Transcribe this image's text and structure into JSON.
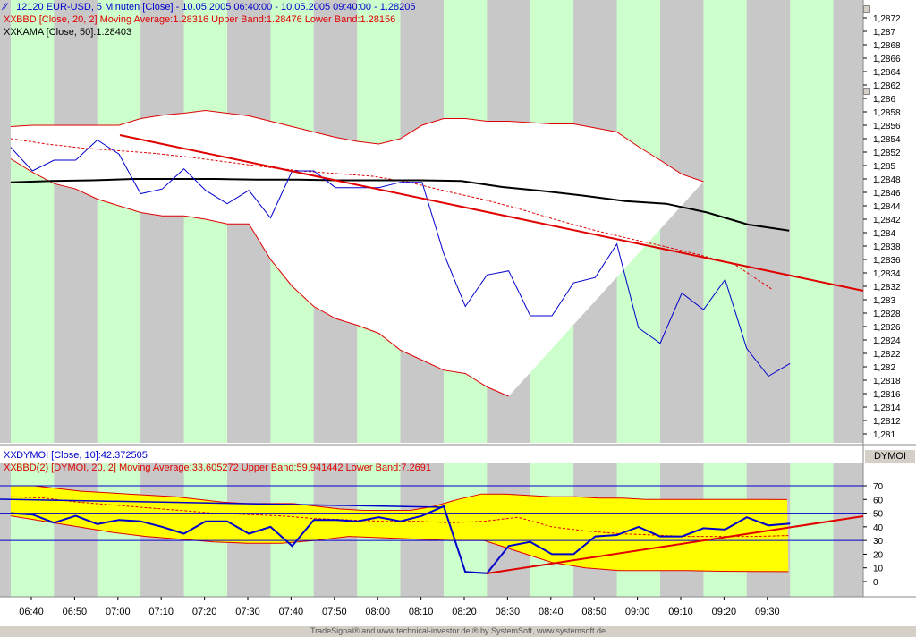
{
  "colors": {
    "stripe_gray": "#c8c8c8",
    "stripe_green": "#ccffcc",
    "price": "#0000cc",
    "band": "#e00000",
    "kama": "#000000",
    "trend": "#e00000",
    "band_fill_top": "#ffffff",
    "band_fill_bottom": "#ffff00"
  },
  "legends": {
    "price": "12120  EUR-USD, 5 Minuten [Close] - 10.05.2005 06:40:00 - 10.05.2005 09:40:00 - 1.28205",
    "bbd": "BBD [Close, 20, 2] Moving Average:1.28316 Upper Band:1.28476 Lower Band:1.28156",
    "kama": "KAMA [Close, 50]:1.28403",
    "dymoi": "DYMOI [Close, 10]:42.372505",
    "bbd2": "BBD(2) [DYMOI, 20, 2] Moving Average:33.605272 Upper Band:59.941442 Lower Band:7.2691"
  },
  "lower_panel_label": "DYMOI",
  "footer": "TradeSignal® and www.technical-investor.de ® by  SystemSoft, www.systemsoft.de",
  "x_labels": [
    "06:40",
    "06:50",
    "07:00",
    "07:10",
    "07:20",
    "07:30",
    "07:40",
    "07:50",
    "08:00",
    "08:10",
    "08:20",
    "08:30",
    "08:40",
    "08:50",
    "09:00",
    "09:10",
    "09:20",
    "09:30"
  ],
  "price_ticks": [
    "1,2872",
    "1,287",
    "1,2868",
    "1,2866",
    "1,2864",
    "1,2862",
    "1,286",
    "1,2858",
    "1,2856",
    "1,2854",
    "1,2852",
    "1,285",
    "1,2848",
    "1,2846",
    "1,2844",
    "1,2842",
    "1,284",
    "1,2838",
    "1,2836",
    "1,2834",
    "1,2832",
    "1,283",
    "1,2828",
    "1,2826",
    "1,2824",
    "1,2822",
    "1,282",
    "1,2818",
    "1,2816",
    "1,2814",
    "1,2812",
    "1,281"
  ],
  "dymoi_ticks": [
    "70",
    "60",
    "50",
    "40",
    "30",
    "20",
    "10",
    "0"
  ],
  "chart_data": [
    {
      "type": "line",
      "title": "12120  EUR-USD, 5 Minuten [Close]",
      "ylim": [
        1.2808,
        1.2874
      ],
      "series": [
        {
          "name": "EUR-USD Close",
          "values": [
            1.28527,
            1.28492,
            1.28508,
            1.28508,
            1.28538,
            1.28517,
            1.28458,
            1.28465,
            1.28495,
            1.28463,
            1.28443,
            1.28463,
            1.28422,
            1.28492,
            1.28492,
            1.28467,
            1.28467,
            1.28467,
            1.28475,
            1.28475,
            1.28369,
            1.2829,
            1.28337,
            1.28343,
            1.28276,
            1.28276,
            1.28325,
            1.28333,
            1.28383,
            1.28258,
            1.28235,
            1.2831,
            1.28285,
            1.2833,
            1.28227,
            1.28186,
            1.28205
          ]
        },
        {
          "name": "BBD Upper Band",
          "values": [
            1.28558,
            1.2856,
            1.2856,
            1.2856,
            1.2856,
            1.2856,
            1.2857,
            1.28575,
            1.28578,
            1.28582,
            1.28578,
            1.28574,
            1.28566,
            1.28558,
            1.2855,
            1.28542,
            1.28536,
            1.28532,
            1.2854,
            1.2856,
            1.2857,
            1.2857,
            1.28566,
            1.28566,
            1.28564,
            1.28562,
            1.28562,
            1.28556,
            1.2855,
            1.28528,
            1.28508,
            1.28487,
            1.28476
          ]
        },
        {
          "name": "BBD Moving Average",
          "values": [
            1.2854,
            1.28532,
            1.28526,
            1.28522,
            1.28518,
            1.28512,
            1.28505,
            1.28498,
            1.28492,
            1.28488,
            1.28484,
            1.28475,
            1.28462,
            1.2845,
            1.28436,
            1.2842,
            1.28405,
            1.28392,
            1.2838,
            1.28367,
            1.28352,
            1.28316
          ]
        },
        {
          "name": "BBD Lower Band",
          "values": [
            1.2851,
            1.2849,
            1.28473,
            1.28465,
            1.2845,
            1.2844,
            1.2843,
            1.28425,
            1.28425,
            1.2842,
            1.28413,
            1.28413,
            1.2836,
            1.2832,
            1.2829,
            1.28272,
            1.28262,
            1.2825,
            1.28225,
            1.2821,
            1.28195,
            1.2819,
            1.2817,
            1.28156
          ]
        },
        {
          "name": "KAMA",
          "values": [
            1.28475,
            1.28477,
            1.28478,
            1.2848,
            1.2848,
            1.2848,
            1.28479,
            1.28479,
            1.28478,
            1.28478,
            1.28478,
            1.28477,
            1.28468,
            1.28462,
            1.28455,
            1.28447,
            1.28443,
            1.2843,
            1.28412,
            1.28403
          ]
        }
      ]
    },
    {
      "type": "line",
      "title": "DYMOI [Close, 10]",
      "ylim": [
        -5,
        75
      ],
      "series": [
        {
          "name": "DYMOI",
          "values": [
            50,
            49,
            43,
            48,
            42,
            45,
            44,
            40,
            35,
            44,
            44,
            35,
            40,
            26,
            45,
            45,
            44,
            47,
            44,
            48,
            55,
            7,
            6,
            26,
            29,
            20,
            20,
            33,
            34,
            40,
            33,
            33,
            39,
            38,
            47,
            41,
            42.372505
          ]
        },
        {
          "name": "BBD(2) Upper Band",
          "values": [
            70,
            70,
            68,
            66,
            65,
            64,
            63,
            62,
            60,
            58,
            57,
            57,
            57,
            55,
            53,
            52,
            52,
            52,
            55,
            60,
            64,
            64,
            63,
            62,
            62,
            61,
            61,
            60,
            60,
            60,
            60,
            60,
            60,
            59.941442
          ]
        },
        {
          "name": "BBD(2) Moving Average",
          "values": [
            62,
            61,
            58,
            56,
            54,
            52,
            50,
            49,
            48,
            46,
            45,
            44,
            44,
            43,
            44,
            47,
            40,
            37,
            35,
            34,
            33,
            33,
            33,
            33.605272
          ]
        },
        {
          "name": "BBD(2) Lower Band",
          "values": [
            48,
            44,
            40,
            36,
            33,
            31,
            29,
            28,
            28,
            30,
            33,
            32,
            31,
            30,
            30,
            22,
            14,
            10,
            8,
            8,
            8,
            7.5,
            7.3,
            7.2691
          ]
        }
      ]
    }
  ]
}
